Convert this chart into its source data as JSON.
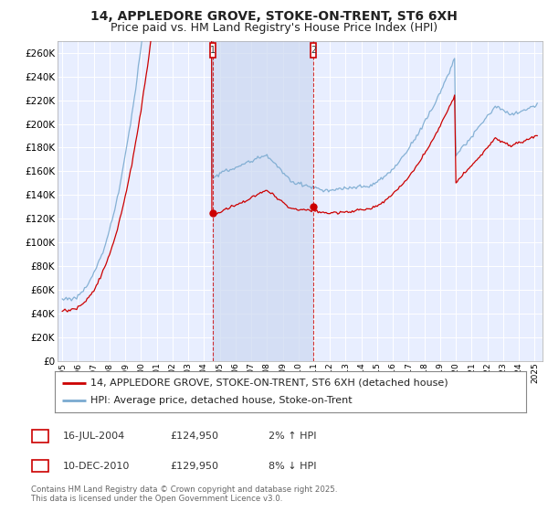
{
  "title": "14, APPLEDORE GROVE, STOKE-ON-TRENT, ST6 6XH",
  "subtitle": "Price paid vs. HM Land Registry's House Price Index (HPI)",
  "ylim": [
    0,
    270000
  ],
  "yticks": [
    0,
    20000,
    40000,
    60000,
    80000,
    100000,
    120000,
    140000,
    160000,
    180000,
    200000,
    220000,
    240000,
    260000
  ],
  "ytick_labels": [
    "£0",
    "£20K",
    "£40K",
    "£60K",
    "£80K",
    "£100K",
    "£120K",
    "£140K",
    "£160K",
    "£180K",
    "£200K",
    "£220K",
    "£240K",
    "£260K"
  ],
  "xlim_start": 1994.7,
  "xlim_end": 2025.5,
  "background_color": "#ffffff",
  "plot_bg_color": "#e8eeff",
  "grid_color": "#ffffff",
  "shade_color": "#ccd8f0",
  "line1_color": "#cc0000",
  "line2_color": "#7aaad0",
  "sale1_x": 2004.54,
  "sale1_y": 124950,
  "sale1_label": "1",
  "sale2_x": 2010.94,
  "sale2_y": 129950,
  "sale2_label": "2",
  "legend_line1": "14, APPLEDORE GROVE, STOKE-ON-TRENT, ST6 6XH (detached house)",
  "legend_line2": "HPI: Average price, detached house, Stoke-on-Trent",
  "annotation1_date": "16-JUL-2004",
  "annotation1_price": "£124,950",
  "annotation1_hpi": "2% ↑ HPI",
  "annotation2_date": "10-DEC-2010",
  "annotation2_price": "£129,950",
  "annotation2_hpi": "8% ↓ HPI",
  "footer": "Contains HM Land Registry data © Crown copyright and database right 2025.\nThis data is licensed under the Open Government Licence v3.0.",
  "title_fontsize": 10,
  "subtitle_fontsize": 9,
  "tick_fontsize": 7.5,
  "legend_fontsize": 8
}
